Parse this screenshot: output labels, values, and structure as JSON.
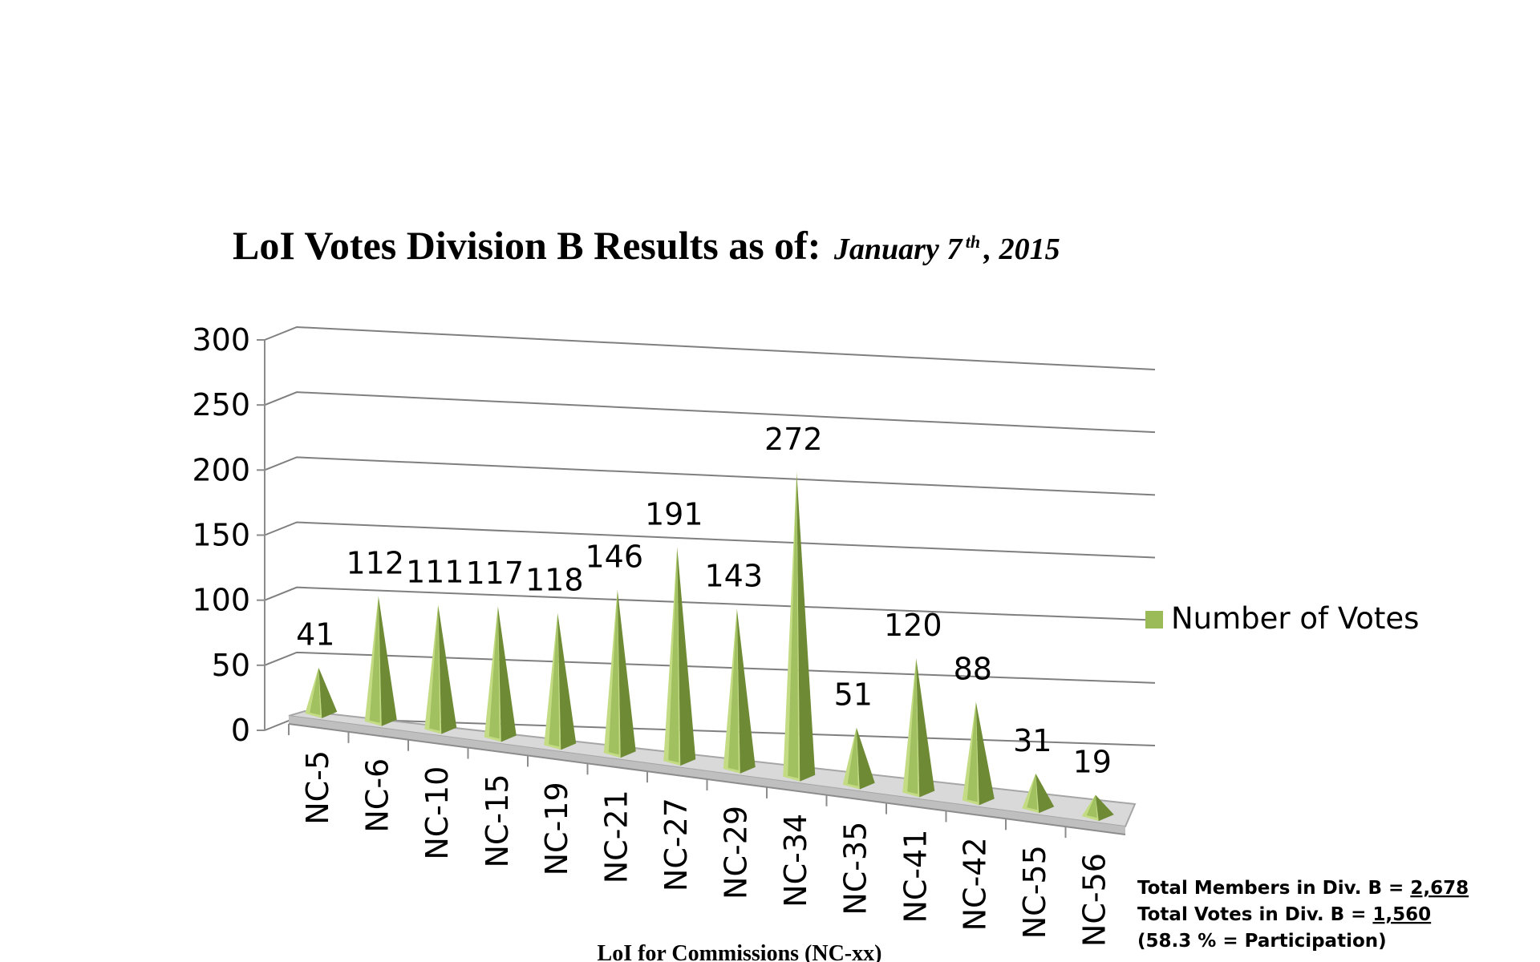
{
  "chart_data": {
    "type": "bar",
    "title": "LoI Votes Division B Results as of:",
    "title_date": {
      "month_day": "January 7",
      "suffix": "th",
      "year": ", 2015"
    },
    "xlabel": "LoI for Commissions (NC-xx)",
    "ylabel": "",
    "ylim": [
      0,
      300
    ],
    "yticks": [
      "0",
      "50",
      "100",
      "150",
      "200",
      "250",
      "300"
    ],
    "categories": [
      "NC-5",
      "NC-6",
      "NC-10",
      "NC-15",
      "NC-19",
      "NC-21",
      "NC-27",
      "NC-29",
      "NC-34",
      "NC-35",
      "NC-41",
      "NC-42",
      "NC-55",
      "NC-56"
    ],
    "series": [
      {
        "name": "Number of Votes",
        "values": [
          41,
          112,
          111,
          117,
          118,
          146,
          191,
          143,
          272,
          51,
          120,
          88,
          31,
          19
        ]
      }
    ],
    "grid": true,
    "legend_position": "right",
    "style": "3d-pyramid",
    "colors": {
      "bar": "#9bbb59",
      "bar_light": "#c3dc84",
      "bar_dark": "#6e8a35",
      "floor": "#bfbfbf"
    }
  },
  "notes": {
    "members_prefix": "Total Members in Div. B = ",
    "members_value": "2,678",
    "votes_prefix": "Total Votes in Div. B = ",
    "votes_value": "1,560",
    "participation": "(58.3 % = Participation)"
  }
}
